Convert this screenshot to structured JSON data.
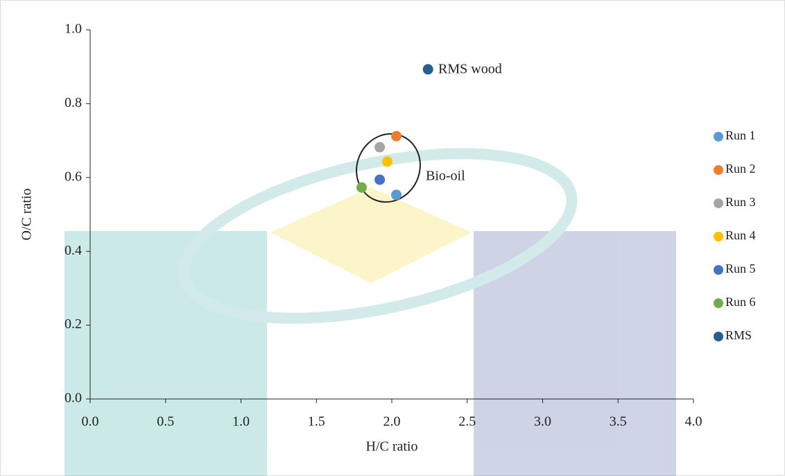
{
  "chart_data": {
    "type": "scatter",
    "x_label": "H/C ratio",
    "y_label": "O/C ratio",
    "xlim": [
      0,
      4
    ],
    "xticks": [
      {
        "value": 0,
        "label": "0.0"
      },
      0.5,
      {
        "value": 1,
        "label": "1.0"
      },
      1.5,
      {
        "value": 2,
        "label": "2.0"
      },
      2.5,
      {
        "value": 3,
        "label": "3.0"
      },
      3.5,
      {
        "value": 4,
        "label": "4.0"
      }
    ],
    "ylim": [
      0,
      1
    ],
    "yticks": [
      {
        "value": 0,
        "label": "0.0"
      },
      0.2,
      0.4,
      0.6,
      0.8,
      {
        "value": 1,
        "label": "1.0"
      }
    ],
    "grid": false,
    "legend": "right",
    "series": [
      {
        "name": "Run 1",
        "color": "#5b9bd5",
        "x": [
          2.03
        ],
        "values": [
          0.553
        ]
      },
      {
        "name": "Run 2",
        "color": "#ed7d31",
        "x": [
          2.03
        ],
        "values": [
          0.712
        ]
      },
      {
        "name": "Run 3",
        "color": "#a5a5a5",
        "x": [
          1.92
        ],
        "values": [
          0.682
        ]
      },
      {
        "name": "Run 4",
        "color": "#ffc000",
        "x": [
          1.97
        ],
        "values": [
          0.643
        ]
      },
      {
        "name": "Run 5",
        "color": "#4472c4",
        "x": [
          1.92
        ],
        "values": [
          0.594
        ]
      },
      {
        "name": "Run 6",
        "color": "#70ad47",
        "x": [
          1.8
        ],
        "values": [
          0.573
        ]
      },
      {
        "name": "RMS",
        "color": "#255e91",
        "x": [
          2.24
        ],
        "values": [
          0.893
        ]
      }
    ],
    "annotations": [
      "RMS wood",
      "Bio-oil"
    ]
  }
}
